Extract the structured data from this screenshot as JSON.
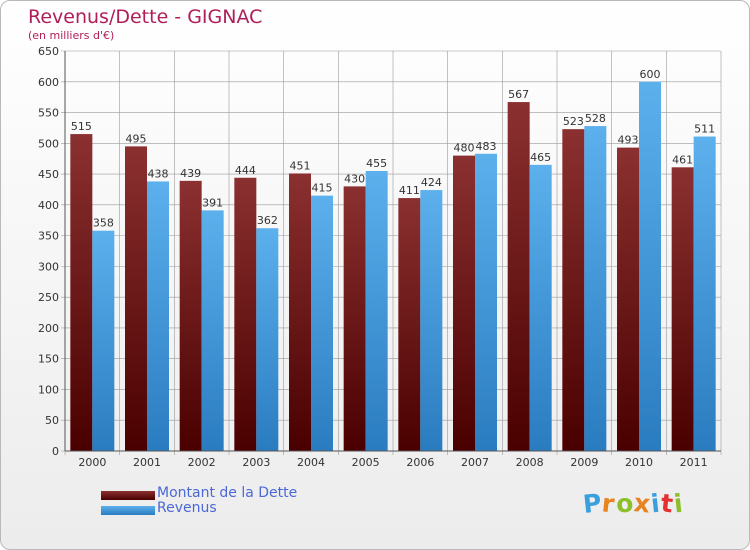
{
  "title": "Revenus/Dette - GIGNAC",
  "subtitle": "(en milliers d'€)",
  "logo_text": "Proxiti",
  "colors": {
    "title": "#b01e5a",
    "debt_light": "#8b3030",
    "debt_dark": "#4a0000",
    "revenue_light": "#5cb0ec",
    "revenue_dark": "#2a7cc0",
    "legend_text": "#4b68d8",
    "grid": "#9a9a9a"
  },
  "chart_data": {
    "type": "bar",
    "title": "Revenus/Dette - GIGNAC",
    "ylabel": "(en milliers d'€)",
    "xlabel": "",
    "categories": [
      "2000",
      "2001",
      "2002",
      "2003",
      "2004",
      "2005",
      "2006",
      "2007",
      "2008",
      "2009",
      "2010",
      "2011"
    ],
    "series": [
      {
        "name": "Montant de la Dette",
        "values": [
          515,
          495,
          439,
          444,
          451,
          430,
          411,
          480,
          567,
          523,
          493,
          461
        ]
      },
      {
        "name": "Revenus",
        "values": [
          358,
          438,
          391,
          362,
          415,
          455,
          424,
          483,
          465,
          528,
          600,
          511
        ]
      }
    ],
    "ylim": [
      0,
      650
    ],
    "yticks": [
      0,
      50,
      100,
      150,
      200,
      250,
      300,
      350,
      400,
      450,
      500,
      550,
      600,
      650
    ],
    "grid": true,
    "legend_position": "bottom-left",
    "data_labels": true
  }
}
